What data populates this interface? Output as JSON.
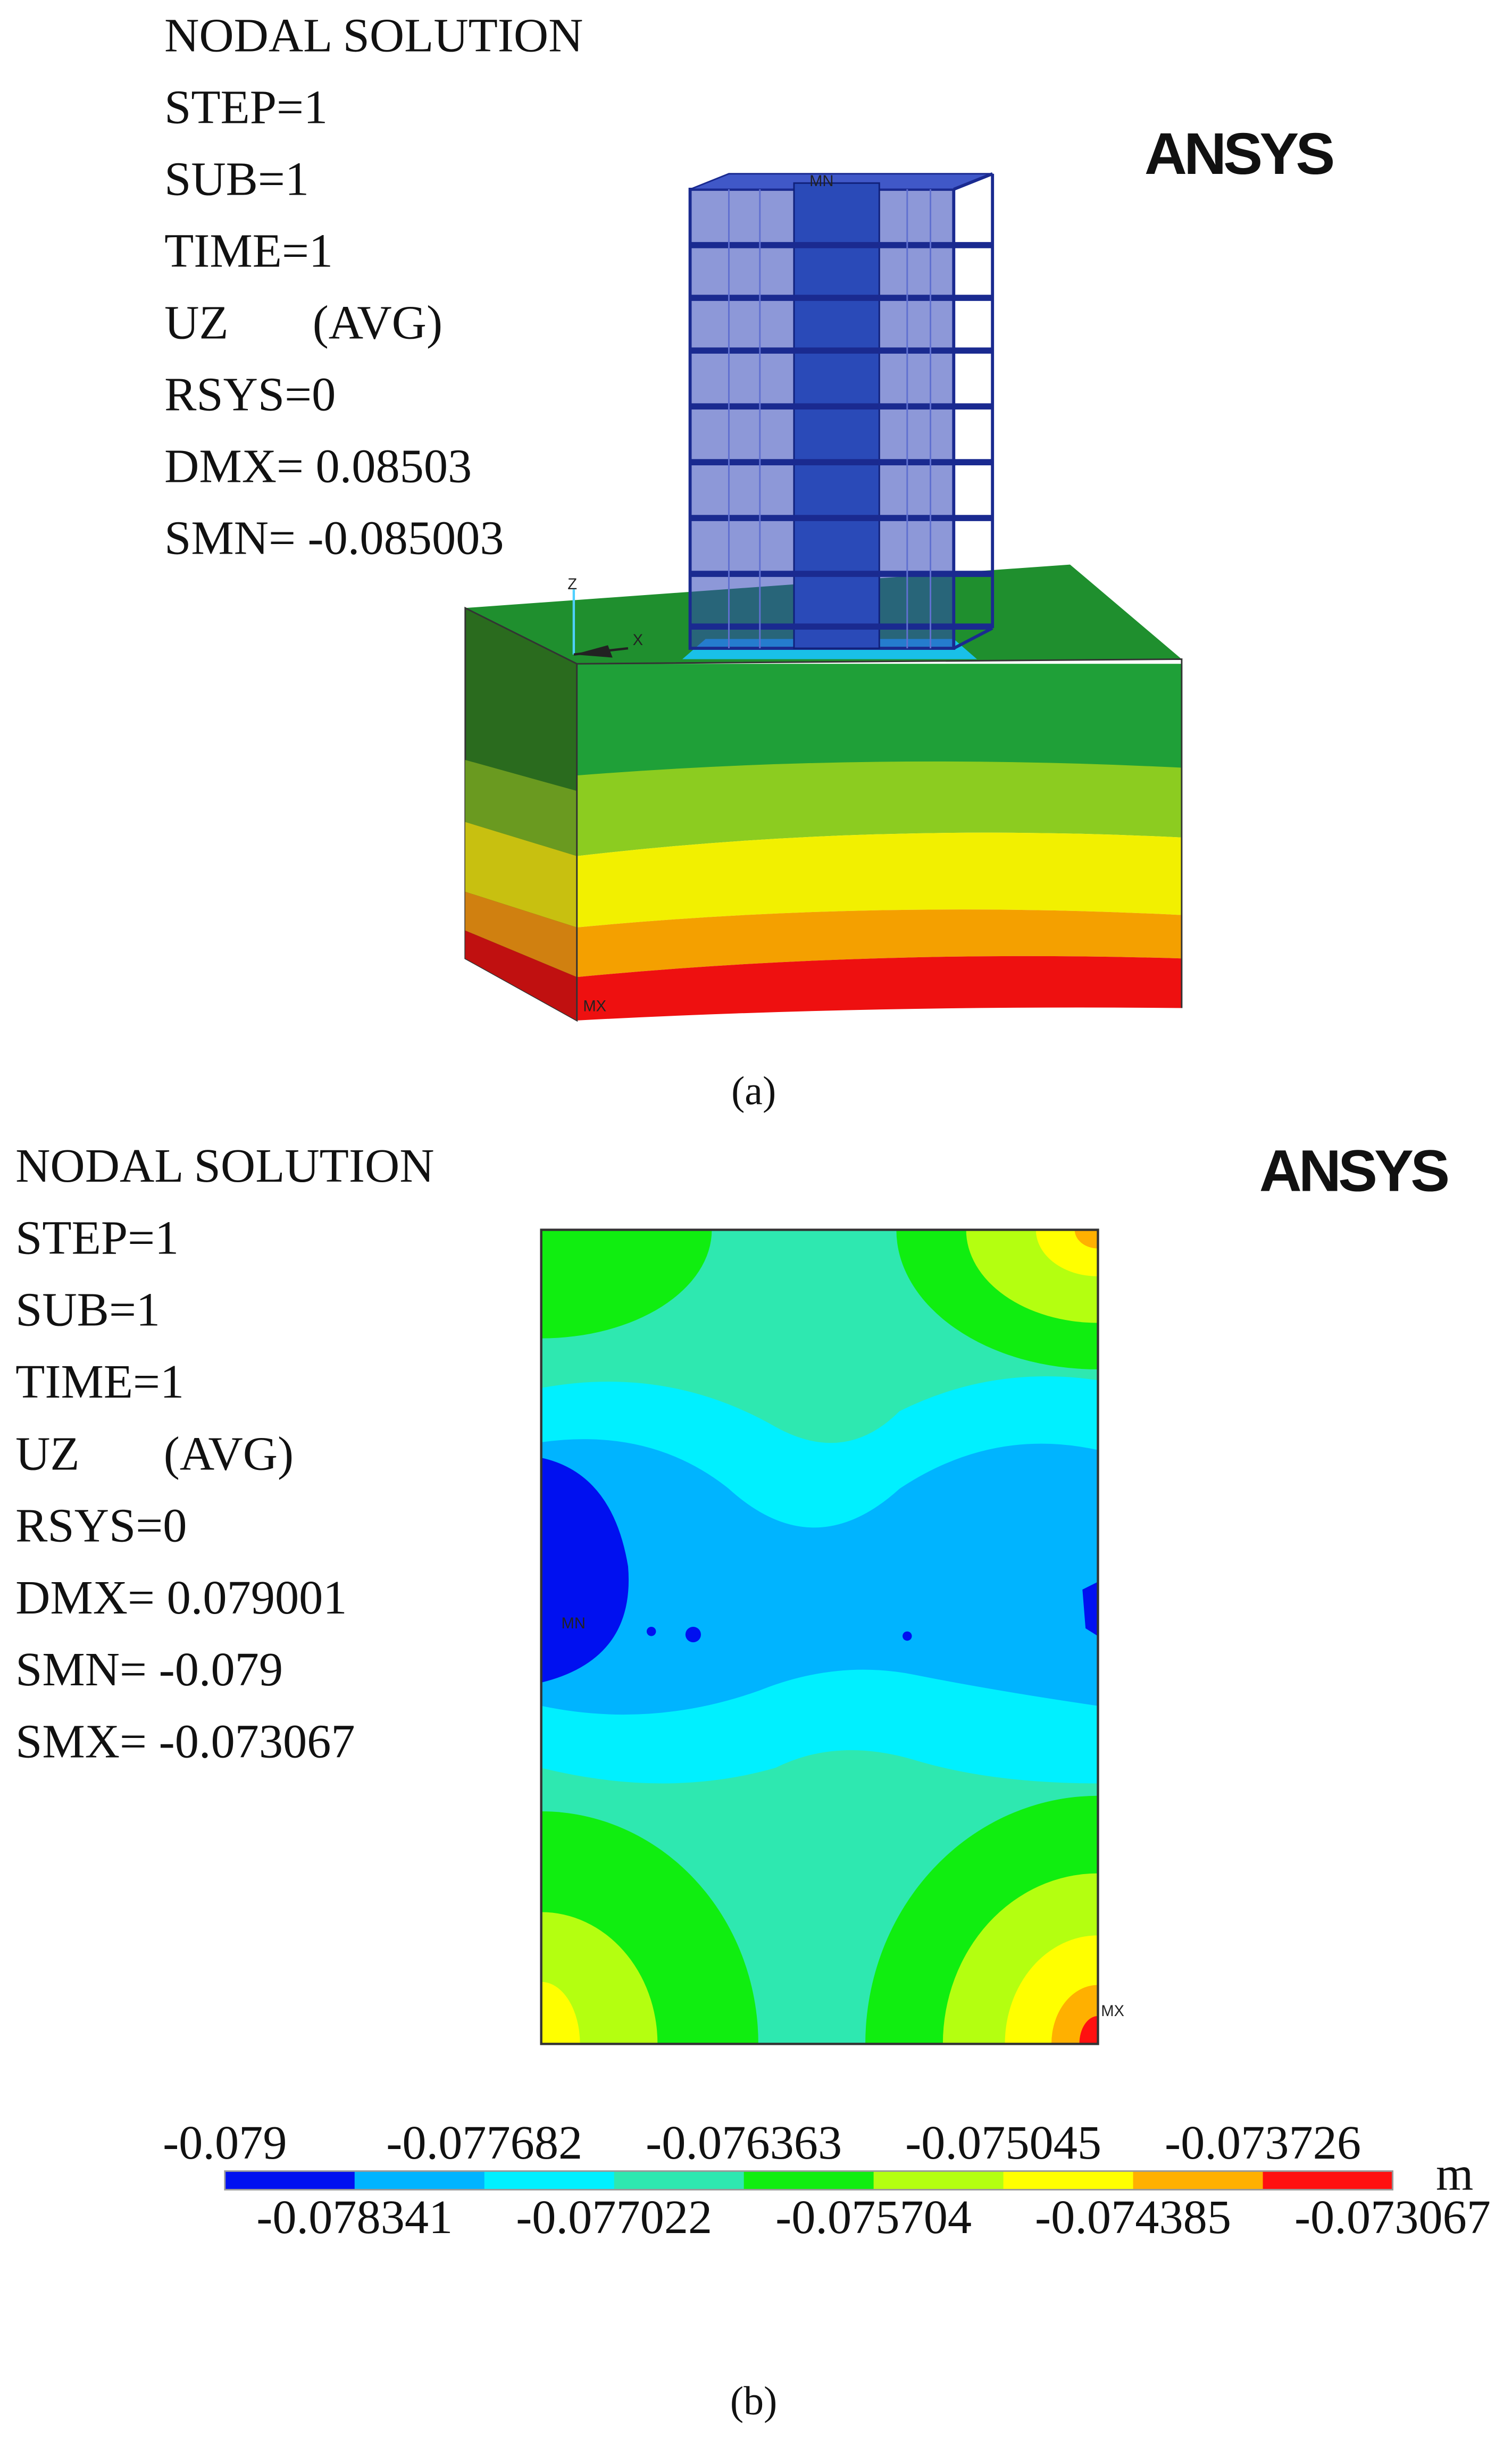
{
  "panel_a": {
    "info": [
      "NODAL SOLUTION",
      "STEP=1",
      "SUB=1",
      "TIME=1",
      "UZ       (AVG)",
      "RSYS=0",
      "DMX= 0.08503",
      "SMN= -0.085003"
    ],
    "logo": "ANSYS",
    "mn": "MN",
    "mx": "MX",
    "axis_z": "Z",
    "axis_x": "X",
    "caption": "(a)"
  },
  "panel_b": {
    "info": [
      "NODAL SOLUTION",
      "STEP=1",
      "SUB=1",
      "TIME=1",
      "UZ       (AVG)",
      "RSYS=0",
      "DMX= 0.079001",
      "SMN= -0.079",
      "SMX= -0.073067"
    ],
    "logo": "ANSYS",
    "mn": "MN",
    "mx": "MX",
    "caption": "(b)",
    "legend": {
      "labels": [
        -0.079,
        -0.078341,
        -0.077682,
        -0.077022,
        -0.076363,
        -0.075704,
        -0.075045,
        -0.074385,
        -0.073726,
        -0.073067
      ],
      "unit": "m"
    }
  }
}
